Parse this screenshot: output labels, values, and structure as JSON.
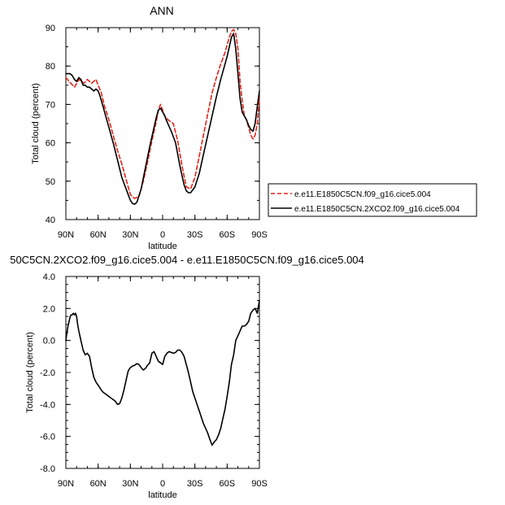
{
  "chart_data": [
    {
      "type": "line",
      "title": "ANN",
      "xlabel": "latitude",
      "ylabel": "Total cloud (percent)",
      "xlim": [
        90,
        -90
      ],
      "ylim": [
        40,
        90
      ],
      "x_ticks": [
        90,
        60,
        30,
        0,
        -30,
        -60,
        -90
      ],
      "x_tick_labels": [
        "90N",
        "60N",
        "30N",
        "0",
        "30S",
        "60S",
        "90S"
      ],
      "y_ticks": [
        40,
        50,
        60,
        70,
        80,
        90
      ],
      "y_tick_labels": [
        "40",
        "50",
        "60",
        "70",
        "80",
        "90"
      ],
      "grid": false,
      "legend": "right",
      "series": [
        {
          "name": "e.e11.E1850C5CN.f09_g16.cice5.004",
          "color": "#e0251b",
          "dash": "dashed",
          "x": [
            90,
            87,
            82,
            78,
            73,
            70,
            66,
            62,
            60,
            57,
            54,
            50,
            46,
            42,
            38,
            34,
            30,
            26,
            22,
            18,
            14,
            10,
            6,
            4,
            2,
            0,
            -2,
            -5,
            -10,
            -14,
            -18,
            -22,
            -26,
            -30,
            -34,
            -38,
            -42,
            -46,
            -50,
            -54,
            -58,
            -60,
            -62,
            -64,
            -66,
            -68,
            -70,
            -72,
            -74,
            -76,
            -78,
            -80,
            -82,
            -84,
            -86,
            -88,
            -90
          ],
          "y": [
            77,
            76,
            74.5,
            76.5,
            75.5,
            76.5,
            75.5,
            76.5,
            75,
            73,
            69.5,
            66,
            62,
            58,
            54.5,
            50.5,
            46.5,
            45.5,
            46,
            50,
            55,
            60.5,
            65.5,
            68.5,
            70,
            68.5,
            67,
            66,
            65,
            60.5,
            54,
            48.5,
            48,
            51,
            56.5,
            62,
            67.5,
            73,
            77,
            80.5,
            83.5,
            85.5,
            87.5,
            89,
            89.5,
            88.5,
            84.5,
            76,
            71,
            67,
            66,
            64,
            62,
            61,
            62,
            65,
            72
          ]
        },
        {
          "name": "e.e11.E1850C5CN.2XCO2.f09_g16.cice5.004",
          "color": "#000000",
          "dash": "solid",
          "x": [
            90,
            88,
            86,
            84,
            82,
            80,
            78,
            76,
            74,
            72,
            70,
            68,
            66,
            64,
            62,
            60,
            58,
            56,
            54,
            50,
            46,
            42,
            38,
            34,
            30,
            28,
            26,
            24,
            20,
            16,
            12,
            8,
            6,
            4,
            2,
            0,
            -2,
            -4,
            -8,
            -12,
            -16,
            -20,
            -22,
            -24,
            -26,
            -30,
            -34,
            -38,
            -42,
            -46,
            -50,
            -54,
            -58,
            -60,
            -62,
            -64,
            -66,
            -68,
            -70,
            -72,
            -74,
            -76,
            -78,
            -80,
            -82,
            -84,
            -86,
            -88,
            -90
          ],
          "y": [
            78,
            78,
            78,
            77.5,
            76.5,
            76,
            77,
            76.5,
            75,
            75,
            74.5,
            74.5,
            74,
            73.5,
            74,
            73.5,
            72,
            70,
            68,
            64,
            60,
            55.5,
            51,
            48,
            45,
            44.2,
            44,
            44.5,
            48,
            53.5,
            59,
            64,
            66.5,
            68.5,
            69,
            68,
            67,
            65.5,
            63,
            60,
            54,
            49,
            47.5,
            47,
            47,
            48.5,
            52,
            57,
            62,
            67,
            72,
            76.5,
            80.5,
            82.5,
            85,
            87.5,
            88.5,
            84.5,
            78,
            71.5,
            68,
            67,
            66,
            64.5,
            63.5,
            63,
            65,
            69.5,
            73.5
          ]
        }
      ]
    },
    {
      "type": "line",
      "title": "50C5CN.2XCO2.f09_g16.cice5.004 - e.e11.E1850C5CN.f09_g16.cice5.004",
      "xlabel": "latitude",
      "ylabel": "Total cloud (percent)",
      "xlim": [
        90,
        -90
      ],
      "ylim": [
        -8,
        4
      ],
      "x_ticks": [
        90,
        60,
        30,
        0,
        -30,
        -60,
        -90
      ],
      "x_tick_labels": [
        "90N",
        "60N",
        "30N",
        "0",
        "30S",
        "60S",
        "90S"
      ],
      "y_ticks": [
        -8,
        -6,
        -4,
        -2,
        0,
        2,
        4
      ],
      "y_tick_labels": [
        "-8.0",
        "-6.0",
        "-4.0",
        "-2.0",
        "0.0",
        "2.0",
        "4.0"
      ],
      "grid": false,
      "series": [
        {
          "color": "#000000",
          "dash": "solid",
          "x": [
            90,
            89,
            88,
            87,
            86,
            85,
            84,
            83,
            82,
            81,
            80,
            79,
            78,
            76,
            74,
            72,
            70,
            68,
            66,
            64,
            62,
            60,
            58,
            56,
            54,
            52,
            50,
            48,
            46,
            44,
            42,
            40,
            38,
            36,
            34,
            32,
            30,
            28,
            26,
            24,
            22,
            20,
            18,
            16,
            14,
            12,
            10,
            8,
            6,
            4,
            2,
            0,
            -2,
            -4,
            -6,
            -8,
            -10,
            -12,
            -14,
            -16,
            -18,
            -20,
            -22,
            -24,
            -26,
            -28,
            -30,
            -32,
            -34,
            -36,
            -38,
            -40,
            -42,
            -44,
            -46,
            -48,
            -50,
            -52,
            -54,
            -56,
            -58,
            -60,
            -62,
            -64,
            -66,
            -68,
            -70,
            -72,
            -74,
            -76,
            -78,
            -80,
            -82,
            -84,
            -86,
            -88,
            -90
          ],
          "y": [
            0.0,
            0.5,
            0.9,
            1.2,
            1.5,
            1.6,
            1.6,
            1.7,
            1.6,
            1.7,
            1.5,
            1.0,
            0.6,
            0.0,
            -0.6,
            -0.9,
            -0.8,
            -1.0,
            -1.7,
            -2.3,
            -2.6,
            -2.8,
            -3.0,
            -3.2,
            -3.3,
            -3.4,
            -3.5,
            -3.6,
            -3.7,
            -3.8,
            -4.0,
            -3.95,
            -3.6,
            -3.1,
            -2.5,
            -1.9,
            -1.7,
            -1.6,
            -1.55,
            -1.45,
            -1.5,
            -1.7,
            -1.85,
            -1.75,
            -1.55,
            -1.4,
            -0.8,
            -0.7,
            -1.0,
            -1.3,
            -1.4,
            -1.5,
            -1.0,
            -0.8,
            -0.7,
            -0.75,
            -0.8,
            -0.75,
            -0.6,
            -0.6,
            -0.75,
            -1.0,
            -1.5,
            -2.0,
            -2.6,
            -3.2,
            -3.6,
            -4.0,
            -4.4,
            -4.8,
            -5.2,
            -5.5,
            -5.8,
            -6.2,
            -6.55,
            -6.35,
            -6.2,
            -5.9,
            -5.5,
            -4.9,
            -4.3,
            -3.5,
            -2.6,
            -1.5,
            -0.9,
            0.0,
            0.3,
            0.6,
            0.9,
            0.9,
            1.0,
            1.2,
            1.7,
            1.9,
            2.0,
            1.7,
            2.5
          ]
        }
      ]
    }
  ]
}
